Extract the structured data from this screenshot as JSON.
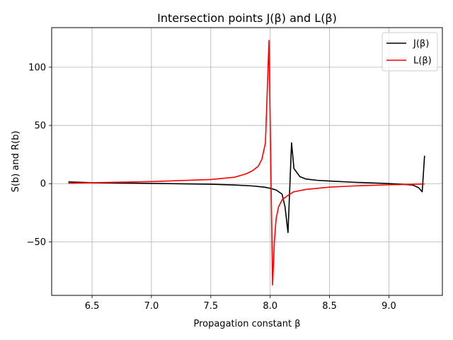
{
  "chart_data": {
    "type": "line",
    "title": "Intersection points J(β) and L(β)",
    "xlabel": "Propagation constant β",
    "ylabel": "S(b) and R(b)",
    "xlim": [
      6.16,
      9.45
    ],
    "ylim": [
      -96,
      134
    ],
    "x_ticks": [
      6.5,
      7.0,
      7.5,
      8.0,
      8.5,
      9.0
    ],
    "x_tick_labels": [
      "6.5",
      "7.0",
      "7.5",
      "8.0",
      "8.5",
      "9.0"
    ],
    "y_ticks": [
      -50,
      0,
      50,
      100
    ],
    "y_tick_labels": [
      "−50",
      "0",
      "50",
      "100"
    ],
    "grid": true,
    "legend_position": "top-right",
    "series": [
      {
        "name": "J(β)",
        "color": "#000000",
        "x": [
          6.3,
          6.5,
          7.0,
          7.5,
          7.7,
          7.85,
          7.95,
          8.0,
          8.05,
          8.1,
          8.125,
          8.15,
          8.18,
          8.2,
          8.25,
          8.3,
          8.4,
          8.5,
          8.7,
          9.0,
          9.1,
          9.2,
          9.25,
          9.28,
          9.3
        ],
        "values": [
          1.5,
          0.8,
          0.2,
          -0.5,
          -1.2,
          -2.0,
          -3.0,
          -4.0,
          -5.5,
          -9.0,
          -20.0,
          -42.0,
          35.0,
          13.0,
          6.0,
          4.0,
          2.8,
          2.2,
          1.2,
          0.0,
          -0.5,
          -1.2,
          -3.5,
          -7.0,
          24.0
        ]
      },
      {
        "name": "L(β)",
        "color": "#ff0000",
        "x": [
          6.3,
          6.5,
          7.0,
          7.5,
          7.7,
          7.8,
          7.85,
          7.9,
          7.93,
          7.96,
          7.99,
          8.02,
          8.035,
          8.05,
          8.07,
          8.1,
          8.15,
          8.2,
          8.3,
          8.5,
          8.7,
          9.0,
          9.2,
          9.3
        ],
        "values": [
          0.3,
          0.8,
          1.8,
          3.5,
          5.5,
          8.5,
          11.0,
          15.0,
          21.0,
          35.0,
          123.0,
          -87.0,
          -50.0,
          -30.0,
          -20.0,
          -14.0,
          -10.0,
          -7.0,
          -5.0,
          -3.0,
          -2.0,
          -1.0,
          -0.6,
          -0.3
        ]
      }
    ]
  }
}
